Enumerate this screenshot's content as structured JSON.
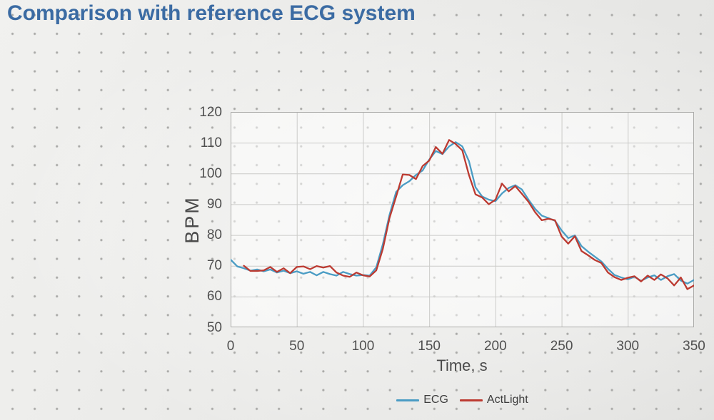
{
  "slide": {
    "title": "Comparison with reference ECG system",
    "title_color": "#3b6ba3"
  },
  "chart_data": {
    "type": "line",
    "title": "",
    "xlabel": "Time, s",
    "ylabel": "BPM",
    "xlim": [
      0,
      350
    ],
    "ylim": [
      50,
      120
    ],
    "x_ticks": [
      0,
      50,
      100,
      150,
      200,
      250,
      300,
      350
    ],
    "y_ticks": [
      50,
      60,
      70,
      80,
      90,
      100,
      110,
      120
    ],
    "grid": true,
    "legend_position": "bottom-center",
    "colors": {
      "grid_line": "#cbcbc9",
      "plot_border": "#ababa9",
      "plot_fill": "rgba(255,255,255,0.5)",
      "tick_text": "#4f4f4f"
    },
    "x": [
      0,
      5,
      10,
      15,
      20,
      25,
      30,
      35,
      40,
      45,
      50,
      55,
      60,
      65,
      70,
      75,
      80,
      85,
      90,
      95,
      100,
      105,
      110,
      115,
      120,
      125,
      130,
      135,
      140,
      145,
      150,
      155,
      160,
      165,
      170,
      175,
      180,
      185,
      190,
      195,
      200,
      205,
      210,
      215,
      220,
      225,
      230,
      235,
      240,
      245,
      250,
      255,
      260,
      265,
      270,
      275,
      280,
      285,
      290,
      295,
      300,
      305,
      310,
      315,
      320,
      325,
      330,
      335,
      340,
      345,
      350
    ],
    "series": [
      {
        "name": "ECG",
        "color": "#4a9cc4",
        "values": [
          72,
          69.8,
          69.2,
          68.4,
          68.8,
          68.2,
          68.8,
          67.8,
          68.4,
          67.6,
          68.2,
          67.4,
          68,
          66.9,
          68,
          67.3,
          66.8,
          68,
          67.3,
          66.8,
          67,
          66.8,
          69.5,
          77,
          86.5,
          94,
          96.2,
          97.5,
          99.5,
          101,
          104.5,
          107.3,
          106.3,
          108.8,
          110.2,
          108.8,
          104,
          95.5,
          92.5,
          91.5,
          91,
          93.5,
          95.3,
          96.2,
          94.8,
          91.5,
          88.5,
          86.3,
          85.5,
          84.6,
          81.5,
          79,
          79.9,
          76.4,
          74.6,
          73,
          71.4,
          69,
          67,
          66.2,
          65.6,
          66.4,
          65.1,
          66.2,
          66.9,
          65.4,
          66.6,
          67.3,
          65.2,
          64.2,
          65.4
        ]
      },
      {
        "name": "ActLight",
        "color": "#bc3a31",
        "values": [
          null,
          null,
          70,
          68.3,
          68.3,
          68.5,
          69.6,
          68,
          69.2,
          67.6,
          69.6,
          69.8,
          68.9,
          69.9,
          69.4,
          69.9,
          67.8,
          66.8,
          66.4,
          67.8,
          66.9,
          66.5,
          68.5,
          75.5,
          85.5,
          92.5,
          99.7,
          99.5,
          98.2,
          102.4,
          104.2,
          108.6,
          106.4,
          110.9,
          109.6,
          107.5,
          99.5,
          93.2,
          92.2,
          90,
          91.5,
          96.7,
          94.2,
          95.9,
          93.4,
          90.8,
          87.4,
          84.8,
          85.3,
          84.8,
          79.5,
          77.2,
          79.6,
          74.8,
          73.4,
          71.9,
          70.9,
          67.8,
          66.3,
          65.4,
          66.1,
          66.6,
          64.9,
          66.8,
          65.4,
          67.2,
          65.9,
          63.6,
          66.2,
          62.4,
          63.6
        ]
      }
    ]
  }
}
